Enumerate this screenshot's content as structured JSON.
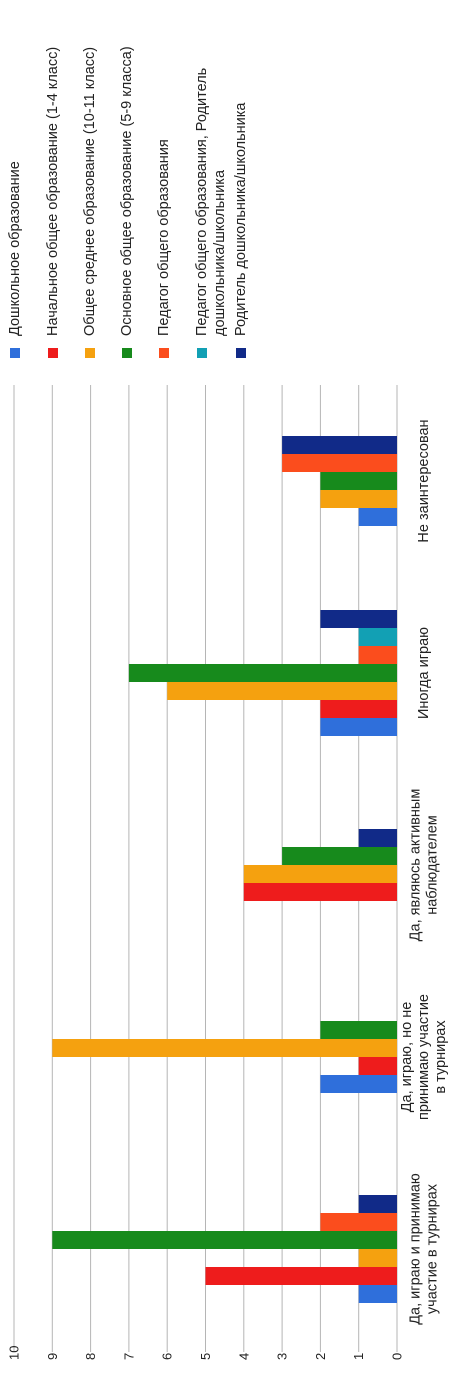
{
  "chart_data": {
    "type": "bar",
    "orientation": "rotated-90",
    "categories": [
      [
        "Да, играю и принимаю",
        "участие в турнирах"
      ],
      [
        "Да, играю, но не",
        "принимаю участие",
        "в турнирах"
      ],
      [
        "Да, являюсь активным",
        "наблюдателем"
      ],
      [
        "Иногда играю"
      ],
      [
        "Не заинтересован"
      ]
    ],
    "series": [
      {
        "name": "Дошкольное образование",
        "color": "#2f6fdb",
        "values": [
          1,
          2,
          0,
          2,
          1
        ]
      },
      {
        "name": "Начальное общее образование (1-4 класс)",
        "color": "#ee1c1c",
        "values": [
          5,
          1,
          4,
          2,
          0
        ]
      },
      {
        "name": "Общее среднее образование (10-11 класс)",
        "color": "#f5a10f",
        "values": [
          1,
          9,
          4,
          6,
          2
        ]
      },
      {
        "name": "Основное общее образование (5-9 класса)",
        "color": "#178a1c",
        "values": [
          9,
          2,
          3,
          7,
          2
        ]
      },
      {
        "name": "Педагог общего образования",
        "color": "#fb4d1d",
        "values": [
          2,
          0,
          0,
          1,
          3
        ]
      },
      {
        "name": "Педагог общего образования, Родитель дошкольника/школьника",
        "color": "#12a0b4",
        "values": [
          0,
          0,
          0,
          1,
          0
        ]
      },
      {
        "name": "Родитель дошкольника/школьника",
        "color": "#112a88",
        "values": [
          1,
          0,
          1,
          2,
          3
        ]
      }
    ],
    "legend_lines": [
      [
        "Дошкольное образование"
      ],
      [
        "Начальное общее образование (1-4 класс)"
      ],
      [
        "Общее среднее образование (10-11 класс)"
      ],
      [
        "Основное общее образование (5-9 класса)"
      ],
      [
        "Педагог общего образования"
      ],
      [
        "Педагог общего образования, Родитель",
        "дошкольника/школьника"
      ],
      [
        "Родитель дошкольника/школьника"
      ]
    ],
    "y_ticks": [
      0,
      1,
      2,
      3,
      4,
      5,
      6,
      7,
      8,
      9,
      10
    ],
    "ylim": [
      0,
      10
    ],
    "grid": true,
    "legend_position": "right",
    "title": "",
    "xlabel": "",
    "ylabel": ""
  }
}
